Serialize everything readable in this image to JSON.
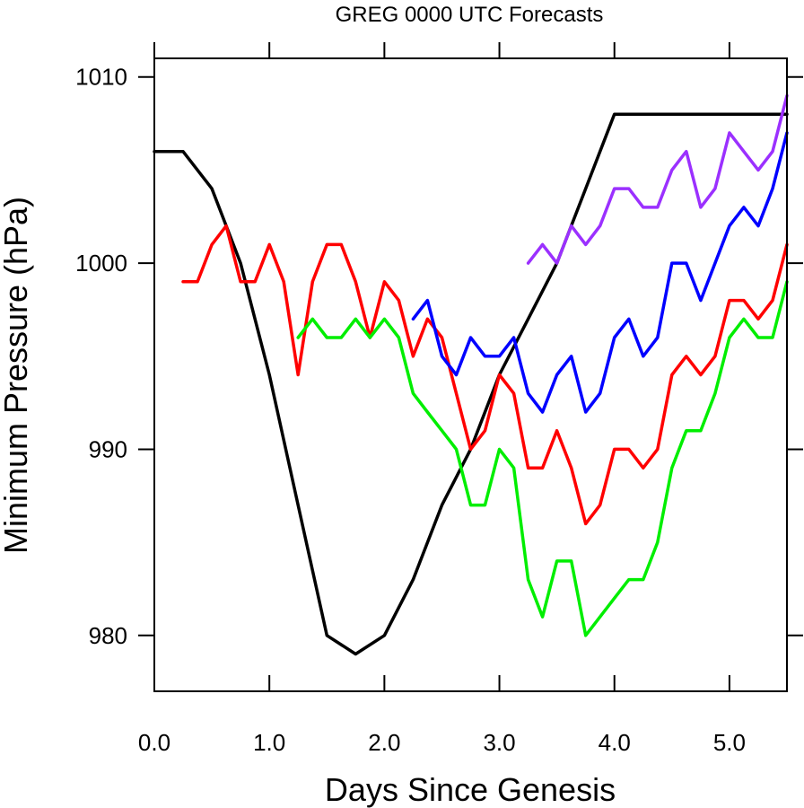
{
  "chart_data": {
    "type": "line",
    "title": "GREG 0000 UTC Forecasts",
    "xlabel": "Days Since Genesis",
    "ylabel": "Minimum Pressure (hPa)",
    "xlim": [
      0,
      5.5
    ],
    "ylim": [
      977,
      1011
    ],
    "x_ticks": [
      0,
      1,
      2,
      3,
      4,
      5
    ],
    "x_tick_labels": [
      "0.0",
      "1.0",
      "2.0",
      "3.0",
      "4.0",
      "5.0"
    ],
    "y_ticks": [
      980,
      990,
      1000,
      1010
    ],
    "y_tick_labels": [
      "980",
      "990",
      "1000",
      "1010"
    ],
    "grid": false,
    "legend": "none",
    "series": [
      {
        "color": "#000000",
        "x": [
          0,
          0.25,
          0.5,
          0.75,
          1.0,
          1.25,
          1.5,
          1.75,
          2.0,
          2.25,
          2.5,
          2.75,
          3.0,
          3.25,
          3.5,
          3.75,
          4.0,
          4.25,
          4.5,
          4.75,
          5.0,
          5.25,
          5.5
        ],
        "y": [
          1006,
          1006,
          1004,
          1000,
          994,
          987,
          980,
          979,
          980,
          983,
          987,
          990,
          994,
          997,
          1000,
          1004,
          1008,
          1008,
          1008,
          1008,
          1008,
          1008,
          1008
        ]
      },
      {
        "color": "#ff0000",
        "x": [
          0.25,
          0.375,
          0.5,
          0.625,
          0.75,
          0.875,
          1.0,
          1.125,
          1.25,
          1.375,
          1.5,
          1.625,
          1.75,
          1.875,
          2.0,
          2.125,
          2.25,
          2.375,
          2.5,
          2.625,
          2.75,
          2.875,
          3.0,
          3.125,
          3.25,
          3.375,
          3.5,
          3.625,
          3.75,
          3.875,
          4.0,
          4.125,
          4.25,
          4.375,
          4.5,
          4.625,
          4.75,
          4.875,
          5.0,
          5.125,
          5.25,
          5.375,
          5.5
        ],
        "y": [
          999,
          999,
          1001,
          1002,
          999,
          999,
          1001,
          999,
          994,
          999,
          1001,
          1001,
          999,
          996,
          999,
          998,
          995,
          997,
          996,
          993,
          990,
          991,
          994,
          993,
          989,
          989,
          991,
          989,
          986,
          987,
          990,
          990,
          989,
          990,
          994,
          995,
          994,
          995,
          998,
          998,
          997,
          998,
          1001
        ]
      },
      {
        "color": "#00ee00",
        "x": [
          1.25,
          1.375,
          1.5,
          1.625,
          1.75,
          1.875,
          2.0,
          2.125,
          2.25,
          2.375,
          2.5,
          2.625,
          2.75,
          2.875,
          3.0,
          3.125,
          3.25,
          3.375,
          3.5,
          3.625,
          3.75,
          3.875,
          4.0,
          4.125,
          4.25,
          4.375,
          4.5,
          4.625,
          4.75,
          4.875,
          5.0,
          5.125,
          5.25,
          5.375,
          5.5
        ],
        "y": [
          996,
          997,
          996,
          996,
          997,
          996,
          997,
          996,
          993,
          992,
          991,
          990,
          987,
          987,
          990,
          989,
          983,
          981,
          984,
          984,
          980,
          981,
          982,
          983,
          983,
          985,
          989,
          991,
          991,
          993,
          996,
          997,
          996,
          996,
          999
        ]
      },
      {
        "color": "#0000ff",
        "x": [
          2.25,
          2.375,
          2.5,
          2.625,
          2.75,
          2.875,
          3.0,
          3.125,
          3.25,
          3.375,
          3.5,
          3.625,
          3.75,
          3.875,
          4.0,
          4.125,
          4.25,
          4.375,
          4.5,
          4.625,
          4.75,
          4.875,
          5.0,
          5.125,
          5.25,
          5.375,
          5.5
        ],
        "y": [
          997,
          998,
          995,
          994,
          996,
          995,
          995,
          996,
          993,
          992,
          994,
          995,
          992,
          993,
          996,
          997,
          995,
          996,
          1000,
          1000,
          998,
          1000,
          1002,
          1003,
          1002,
          1004,
          1007
        ]
      },
      {
        "color": "#9b30ff",
        "x": [
          3.25,
          3.375,
          3.5,
          3.625,
          3.75,
          3.875,
          4.0,
          4.125,
          4.25,
          4.375,
          4.5,
          4.625,
          4.75,
          4.875,
          5.0,
          5.125,
          5.25,
          5.375,
          5.5
        ],
        "y": [
          1000,
          1001,
          1000,
          1002,
          1001,
          1002,
          1004,
          1004,
          1003,
          1003,
          1005,
          1006,
          1003,
          1004,
          1007,
          1006,
          1005,
          1006,
          1009
        ]
      }
    ]
  }
}
